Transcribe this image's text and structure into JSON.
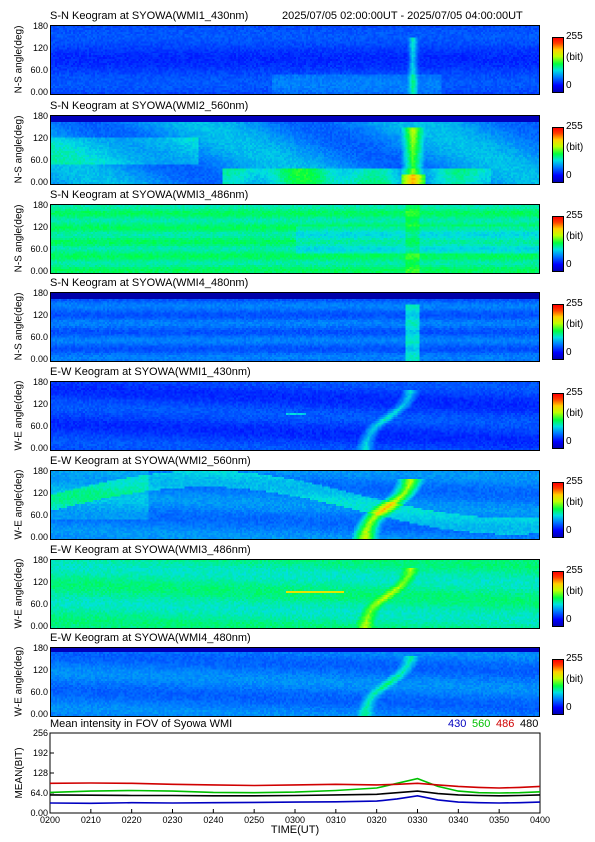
{
  "header": {
    "first_title": "S-N Keogram at SYOWA(WMI1_430nm)",
    "time_range": "2025/07/05 02:00:00UT - 2025/07/05 04:00:00UT"
  },
  "colors": {
    "dark": "#0000b4",
    "blue": "#0000ff",
    "cyan": "#00e0e0",
    "green": "#00ff40",
    "yellow": "#ffd000",
    "red": "#ff0000",
    "line_430": "#0000c0",
    "line_560": "#00c000",
    "line_486": "#d00000",
    "line_480": "#000000"
  },
  "keograms": [
    {
      "title": "S-N Keogram at SYOWA(WMI1_430nm)",
      "ylabel": "N-S angle(deg)",
      "yticks": [
        "180",
        "120",
        "60.0",
        "0.00"
      ],
      "cb_max": "255",
      "cb_unit": "(bit)",
      "cb_min": "0"
    },
    {
      "title": "S-N Keogram at SYOWA(WMI2_560nm)",
      "ylabel": "N-S angle(deg)",
      "yticks": [
        "180",
        "120",
        "60.0",
        "0.00"
      ],
      "cb_max": "255",
      "cb_unit": "(bit)",
      "cb_min": "0"
    },
    {
      "title": "S-N Keogram at SYOWA(WMI3_486nm)",
      "ylabel": "N-S angle(deg)",
      "yticks": [
        "180",
        "120",
        "60.0",
        "0.00"
      ],
      "cb_max": "255",
      "cb_unit": "(bit)",
      "cb_min": "0"
    },
    {
      "title": "S-N Keogram at SYOWA(WMI4_480nm)",
      "ylabel": "N-S angle(deg)",
      "yticks": [
        "180",
        "120",
        "60.0",
        "0.00"
      ],
      "cb_max": "255",
      "cb_unit": "(bit)",
      "cb_min": "0"
    },
    {
      "title": "E-W Keogram at SYOWA(WMI1_430nm)",
      "ylabel": "W-E angle(deg)",
      "yticks": [
        "180",
        "120",
        "60.0",
        "0.00"
      ],
      "cb_max": "255",
      "cb_unit": "(bit)",
      "cb_min": "0"
    },
    {
      "title": "E-W Keogram at SYOWA(WMI2_560nm)",
      "ylabel": "W-E angle(deg)",
      "yticks": [
        "180",
        "120",
        "60.0",
        "0.00"
      ],
      "cb_max": "255",
      "cb_unit": "(bit)",
      "cb_min": "0"
    },
    {
      "title": "E-W Keogram at SYOWA(WMI3_486nm)",
      "ylabel": "W-E angle(deg)",
      "yticks": [
        "180",
        "120",
        "60.0",
        "0.00"
      ],
      "cb_max": "255",
      "cb_unit": "(bit)",
      "cb_min": "0"
    },
    {
      "title": "E-W Keogram at SYOWA(WMI4_480nm)",
      "ylabel": "W-E angle(deg)",
      "yticks": [
        "180",
        "120",
        "60.0",
        "0.00"
      ],
      "cb_max": "255",
      "cb_unit": "(bit)",
      "cb_min": "0"
    }
  ],
  "chart_data": {
    "type": "line",
    "title": "Mean intensity in FOV of Syowa WMI",
    "xlabel": "TIME(UT)",
    "ylabel": "MEAN(BIT)",
    "xlim": [
      200,
      400
    ],
    "ylim": [
      0,
      256
    ],
    "x_ticks": [
      "0200",
      "0210",
      "0220",
      "0230",
      "0240",
      "0250",
      "0300",
      "0310",
      "0320",
      "0330",
      "0340",
      "0350",
      "0400"
    ],
    "y_ticks": [
      "256",
      "192",
      "128",
      "64.0",
      "0.00"
    ],
    "legend": [
      "430",
      "560",
      "486",
      "480"
    ],
    "legend_placement": "top-right",
    "x": [
      200,
      210,
      220,
      230,
      240,
      250,
      300,
      310,
      320,
      325,
      330,
      335,
      340,
      345,
      350,
      355,
      400
    ],
    "series": [
      {
        "name": "430",
        "color": "#0000c0",
        "values": [
          32,
          31,
          33,
          32,
          33,
          34,
          35,
          36,
          38,
          45,
          55,
          42,
          35,
          33,
          32,
          33,
          35
        ]
      },
      {
        "name": "560",
        "color": "#00c000",
        "values": [
          66,
          70,
          72,
          70,
          66,
          65,
          67,
          72,
          80,
          95,
          110,
          85,
          70,
          65,
          64,
          65,
          68
        ]
      },
      {
        "name": "486",
        "color": "#d00000",
        "values": [
          95,
          96,
          95,
          92,
          90,
          88,
          90,
          92,
          90,
          92,
          95,
          90,
          85,
          82,
          80,
          82,
          85
        ]
      },
      {
        "name": "480",
        "color": "#000000",
        "values": [
          58,
          57,
          56,
          56,
          55,
          55,
          56,
          58,
          60,
          65,
          70,
          62,
          58,
          56,
          55,
          56,
          58
        ]
      }
    ]
  }
}
